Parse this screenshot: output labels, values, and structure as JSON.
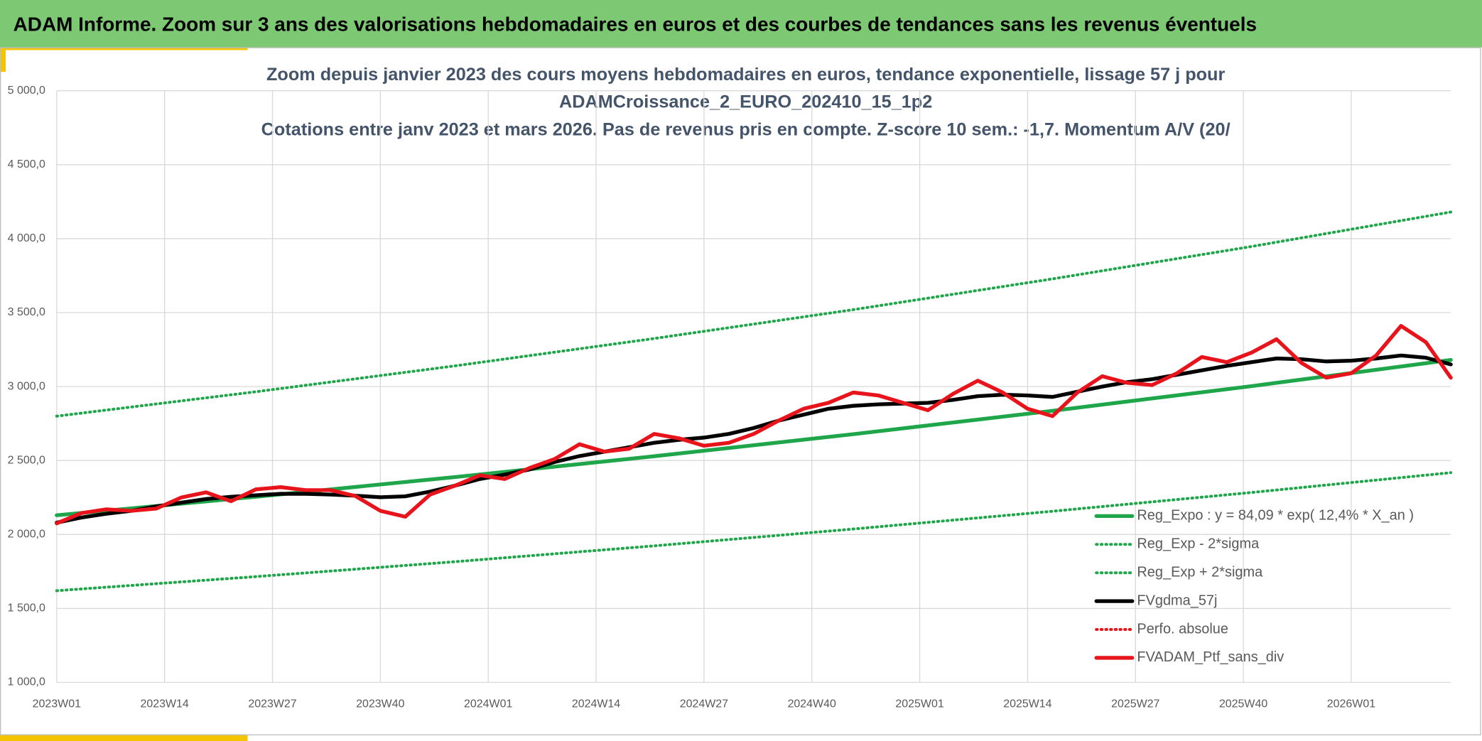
{
  "header": {
    "title": "ADAM Informe. Zoom sur 3 ans des valorisations hebdomadaires en euros et des courbes de tendances sans les revenus éventuels"
  },
  "chart_data": {
    "type": "line",
    "title": [
      "Zoom depuis janvier 2023 des cours moyens hebdomadaires en euros, tendance exponentielle, lissage 57 j pour",
      "ADAMCroissance_2_EURO_202410_15_1p2",
      "Cotations entre janv 2023 et mars 2026. Pas de revenus pris en compte. Z-score 10 sem.: -1,7. Momentum A/V (20/"
    ],
    "grid": true,
    "xlim": [
      0,
      168
    ],
    "xticks": [
      {
        "value": 0,
        "label": "2023W01"
      },
      {
        "value": 13,
        "label": "2023W14"
      },
      {
        "value": 26,
        "label": "2023W27"
      },
      {
        "value": 39,
        "label": "2023W40"
      },
      {
        "value": 52,
        "label": "2024W01"
      },
      {
        "value": 65,
        "label": "2024W14"
      },
      {
        "value": 78,
        "label": "2024W27"
      },
      {
        "value": 91,
        "label": "2024W40"
      },
      {
        "value": 104,
        "label": "2025W01"
      },
      {
        "value": 117,
        "label": "2025W14"
      },
      {
        "value": 130,
        "label": "2025W27"
      },
      {
        "value": 143,
        "label": "2025W40"
      },
      {
        "value": 156,
        "label": "2026W01"
      }
    ],
    "ylim": [
      1000,
      5000
    ],
    "yticks": [
      {
        "value": 1000,
        "label": "1 000,0"
      },
      {
        "value": 1500,
        "label": "1 500,0"
      },
      {
        "value": 2000,
        "label": "2 000,0"
      },
      {
        "value": 2500,
        "label": "2 500,0"
      },
      {
        "value": 3000,
        "label": "3 000,0"
      },
      {
        "value": 3500,
        "label": "3 500,0"
      },
      {
        "value": 4000,
        "label": "4 000,0"
      },
      {
        "value": 4500,
        "label": "4 500,0"
      },
      {
        "value": 5000,
        "label": "5 000,0"
      }
    ],
    "x": [
      0,
      3,
      6,
      9,
      12,
      15,
      18,
      21,
      24,
      27,
      30,
      33,
      36,
      39,
      42,
      45,
      48,
      51,
      54,
      57,
      60,
      63,
      66,
      69,
      72,
      75,
      78,
      81,
      84,
      87,
      90,
      93,
      96,
      99,
      102,
      105,
      108,
      111,
      114,
      117,
      120,
      123,
      126,
      129,
      132,
      135,
      138,
      141,
      144,
      147,
      150,
      153,
      156,
      159,
      162,
      165,
      168
    ],
    "series": [
      {
        "name": "Reg_Expo : y = 84,09 * exp( 12,4% *  X_an )",
        "color": "#1fa64a",
        "style": "solid",
        "x": [
          0,
          24,
          48,
          72,
          96,
          120,
          144,
          168
        ],
        "values": [
          2130,
          2255,
          2388,
          2529,
          2678,
          2836,
          3003,
          3180
        ]
      },
      {
        "name": "Reg_Exp - 2*sigma",
        "color": "#1fa64a",
        "style": "dotted",
        "x": [
          0,
          24,
          48,
          72,
          96,
          120,
          144,
          168
        ],
        "values": [
          1620,
          1715,
          1816,
          1923,
          2037,
          2157,
          2284,
          2418
        ]
      },
      {
        "name": "Reg_Exp + 2*sigma",
        "color": "#1fa64a",
        "style": "dotted",
        "x": [
          0,
          24,
          48,
          72,
          96,
          120,
          144,
          168
        ],
        "values": [
          2800,
          2965,
          3140,
          3325,
          3520,
          3728,
          3947,
          4180
        ]
      },
      {
        "name": "FVgdma_57j",
        "color": "#000000",
        "style": "solid",
        "values": [
          2080,
          2115,
          2140,
          2160,
          2190,
          2215,
          2240,
          2255,
          2265,
          2275,
          2275,
          2270,
          2262,
          2252,
          2258,
          2290,
          2330,
          2375,
          2405,
          2440,
          2490,
          2530,
          2560,
          2590,
          2620,
          2640,
          2655,
          2680,
          2720,
          2770,
          2810,
          2850,
          2870,
          2880,
          2885,
          2890,
          2910,
          2935,
          2945,
          2940,
          2930,
          2965,
          3000,
          3030,
          3050,
          3080,
          3110,
          3140,
          3165,
          3190,
          3185,
          3170,
          3175,
          3190,
          3210,
          3195,
          3150
        ]
      },
      {
        "name": "Perfo. absolue",
        "color": "#e8141b",
        "style": "dotted"
      },
      {
        "name": "FVADAM_Ptf_sans_div",
        "color": "#e8141b",
        "style": "solid",
        "values": [
          2075,
          2145,
          2170,
          2160,
          2175,
          2250,
          2285,
          2225,
          2305,
          2320,
          2300,
          2300,
          2260,
          2160,
          2120,
          2270,
          2330,
          2400,
          2375,
          2450,
          2510,
          2610,
          2560,
          2580,
          2680,
          2650,
          2600,
          2620,
          2680,
          2770,
          2850,
          2890,
          2960,
          2940,
          2890,
          2840,
          2950,
          3040,
          2960,
          2850,
          2800,
          2960,
          3070,
          3025,
          3010,
          3090,
          3200,
          3165,
          3230,
          3320,
          3160,
          3060,
          3090,
          3210,
          3410,
          3300,
          3060
        ]
      }
    ]
  }
}
